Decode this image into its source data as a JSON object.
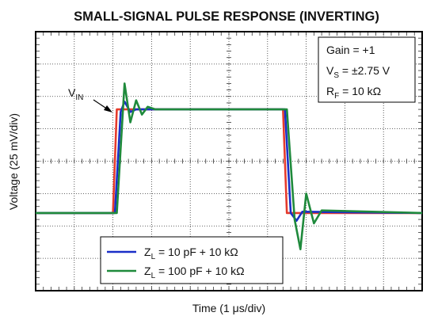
{
  "chart_data": {
    "type": "line",
    "title": "SMALL-SIGNAL PULSE RESPONSE (INVERTING)",
    "x_label": "Time (1 μs/div)",
    "y_label": "Voltage (25 mV/div)",
    "xlim": [
      0,
      10
    ],
    "ylim": [
      -100,
      100
    ],
    "xticks": [
      0,
      1,
      2,
      3,
      4,
      5,
      6,
      7,
      8,
      9,
      10
    ],
    "yticks": [
      -100,
      -75,
      -50,
      -25,
      0,
      25,
      50,
      75,
      100
    ],
    "grid": true,
    "annotation": [
      [
        "Gain = +1"
      ],
      [
        "V",
        "S",
        " = ±2.75 V"
      ],
      [
        "R",
        "F",
        " = 10 kΩ"
      ]
    ],
    "legend": "lower center",
    "series": [
      {
        "name": [
          "V",
          "IN"
        ],
        "color": "#e53b2c",
        "x": [
          0,
          2.0,
          2.1,
          6.4,
          6.5,
          10
        ],
        "values": [
          -40,
          -40,
          40,
          40,
          -40,
          -40
        ]
      },
      {
        "name": [
          "Z",
          "L",
          " = 10 pF + 10 kΩ"
        ],
        "color": "#1a2fc8",
        "x": [
          0,
          2.05,
          2.2,
          2.3,
          2.45,
          2.6,
          6.45,
          6.6,
          6.75,
          6.9,
          10
        ],
        "values": [
          -40,
          -40,
          38,
          46,
          38,
          40,
          40,
          -40,
          -46,
          -39,
          -40
        ]
      },
      {
        "name": [
          "Z",
          "L",
          " = 100 pF + 10 kΩ"
        ],
        "color": "#1f8a3c",
        "x": [
          0,
          2.1,
          2.3,
          2.45,
          2.6,
          2.75,
          2.9,
          3.1,
          6.5,
          6.7,
          6.85,
          7.0,
          7.2,
          7.4,
          10
        ],
        "values": [
          -40,
          -40,
          60,
          30,
          47,
          36,
          42,
          40,
          40,
          -45,
          -68,
          -25,
          -48,
          -38,
          -40
        ]
      }
    ]
  }
}
